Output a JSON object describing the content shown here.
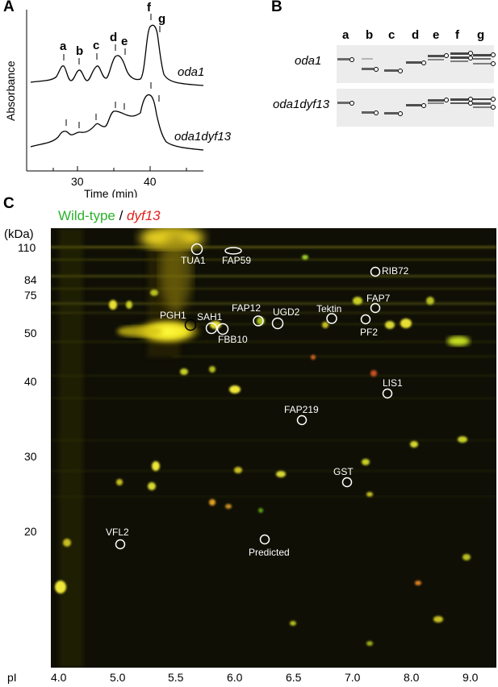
{
  "panels": {
    "A": "A",
    "B": "B",
    "C": "C"
  },
  "panelA": {
    "ylabel": "Absorbance",
    "xlabel": "Time (min)",
    "xticks": [
      "30",
      "40"
    ],
    "trace1_label": "oda1",
    "trace2_label": "oda1dyf13",
    "peak_labels": [
      "a",
      "b",
      "c",
      "d",
      "e",
      "f",
      "g"
    ]
  },
  "panelB": {
    "lanes": [
      "a",
      "b",
      "c",
      "d",
      "e",
      "f",
      "g"
    ],
    "rows": [
      "oda1",
      "oda1dyf13"
    ]
  },
  "panelC": {
    "legend_wt": "Wild-type",
    "legend_sep": " / ",
    "legend_mut": "dyf13",
    "ylabel_unit": "(kDa)",
    "y_ticks": [
      "110",
      "84",
      "75",
      "50",
      "40",
      "30",
      "20"
    ],
    "x_axis_label": "pI",
    "x_ticks": [
      "4.0",
      "5.0",
      "5.5",
      "6.0",
      "6.5",
      "7.0",
      "8.0",
      "9.0"
    ],
    "spots": [
      "TUA1",
      "FAP59",
      "RIB72",
      "FAP7",
      "PGH1",
      "SAH1",
      "FBB10",
      "FAP12",
      "UGD2",
      "Tektin",
      "PF2",
      "LIS1",
      "FAP219",
      "GST",
      "VFL2",
      "Predicted"
    ]
  },
  "colors": {
    "wild_type": "#2bb32b",
    "mutant": "#e0201c",
    "gel_bg": "#0f0f06"
  }
}
